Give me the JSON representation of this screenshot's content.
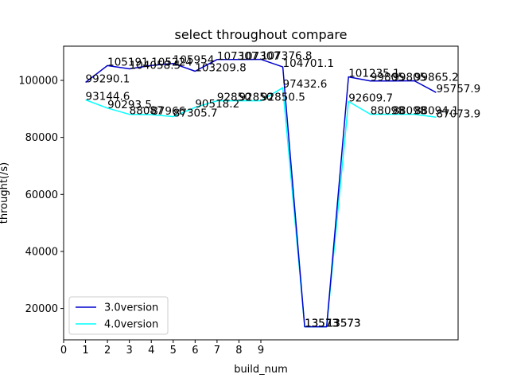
{
  "chart_data": {
    "type": "line",
    "title": "select throughout compare",
    "xlabel": "build_num",
    "ylabel": "throught(/s)",
    "xlim": [
      0,
      18
    ],
    "ylim": [
      9000,
      112000
    ],
    "x_ticks": [
      0,
      1,
      2,
      3,
      4,
      5,
      6,
      7,
      8,
      9
    ],
    "y_ticks": [
      20000,
      40000,
      60000,
      80000,
      100000
    ],
    "y_tick_labels": [
      "20000",
      "40000",
      "60000",
      "80000",
      "100000"
    ],
    "grid": false,
    "legend_position": "lower-left",
    "x": [
      1,
      2,
      3,
      4,
      5,
      6,
      7,
      8,
      9,
      10,
      11,
      12,
      13,
      14,
      15,
      16,
      17
    ],
    "series": [
      {
        "name": "3.0version",
        "color": "#0000cd",
        "values": [
          99290.1,
          105191,
          104058.5,
          105224,
          105954,
          103209.8,
          107307,
          107307,
          107376.8,
          104701.1,
          13573,
          13573,
          101235.1,
          99805,
          99805,
          99865.2,
          95757.9
        ],
        "labels": [
          "99290.1",
          "105191",
          "104058.5",
          "105224",
          "105954",
          "103209.8",
          "107307",
          "107307",
          "107376.8",
          "104701.1",
          "13573",
          "13573",
          "101235.1",
          "99805",
          "99805",
          "99865.2",
          "95757.9"
        ]
      },
      {
        "name": "4.0version",
        "color": "#00ffff",
        "values": [
          93144.6,
          90293.5,
          88087,
          87966,
          87305.7,
          90518.2,
          92850,
          92850,
          92850.5,
          97432.6,
          13573,
          13573,
          92609.7,
          88098,
          88098,
          88094.1,
          87073.9
        ],
        "labels": [
          "93144.6",
          "90293.5",
          "88087",
          "87966",
          "87305.7",
          "90518.2",
          "92850",
          "92850",
          "92850.5",
          "97432.6",
          "13573",
          "13573",
          "92609.7",
          "88098",
          "88098",
          "88094.1",
          "87073.9"
        ]
      }
    ]
  }
}
